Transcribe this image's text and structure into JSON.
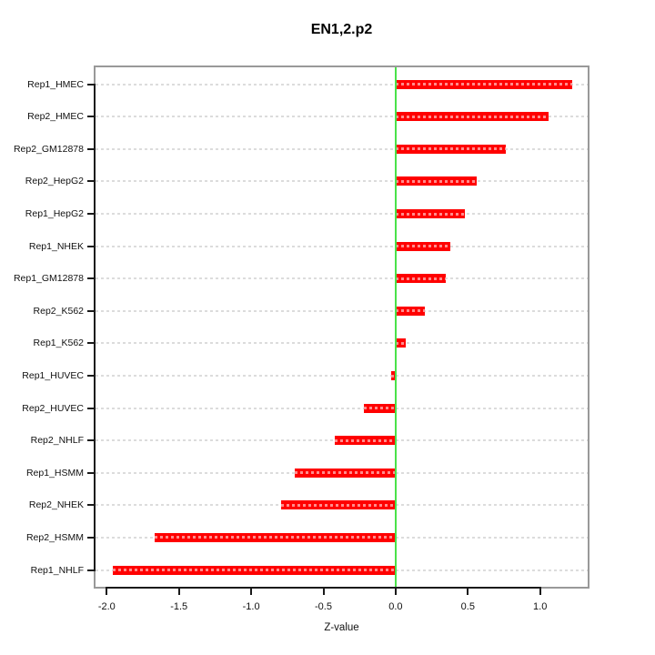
{
  "title": "EN1,2.p2",
  "colors": {
    "bar": "#ff0000",
    "zero_line": "#4ae24a",
    "grid": "#dcdcdc",
    "box": "#999999",
    "axis": "#1a1a1a"
  },
  "chart_data": {
    "type": "bar",
    "orientation": "horizontal",
    "title": "EN1,2.p2",
    "xlabel": "Z-value",
    "ylabel": "",
    "categories": [
      "Rep1_HMEC",
      "Rep2_HMEC",
      "Rep2_GM12878",
      "Rep2_HepG2",
      "Rep1_HepG2",
      "Rep1_NHEK",
      "Rep1_GM12878",
      "Rep2_K562",
      "Rep1_K562",
      "Rep1_HUVEC",
      "Rep2_HUVEC",
      "Rep2_NHLF",
      "Rep1_HSMM",
      "Rep2_NHEK",
      "Rep2_HSMM",
      "Rep1_NHLF"
    ],
    "values": [
      1.22,
      1.06,
      0.76,
      0.56,
      0.48,
      0.38,
      0.35,
      0.2,
      0.07,
      -0.03,
      -0.22,
      -0.42,
      -0.7,
      -0.79,
      -1.67,
      -1.96
    ],
    "x_ticks": [
      -2.0,
      -1.5,
      -1.0,
      -0.5,
      0.0,
      0.5,
      1.0
    ],
    "x_tick_labels": [
      "-2.0",
      "-1.5",
      "-1.0",
      "-0.5",
      "0.0",
      "0.5",
      "1.0"
    ],
    "xlim": [
      -2.09,
      1.34
    ],
    "zero_reference_line": 0.0,
    "grid": "dashed-horizontal",
    "legend": "none",
    "bar_color": "red",
    "zero_line_color": "green"
  }
}
